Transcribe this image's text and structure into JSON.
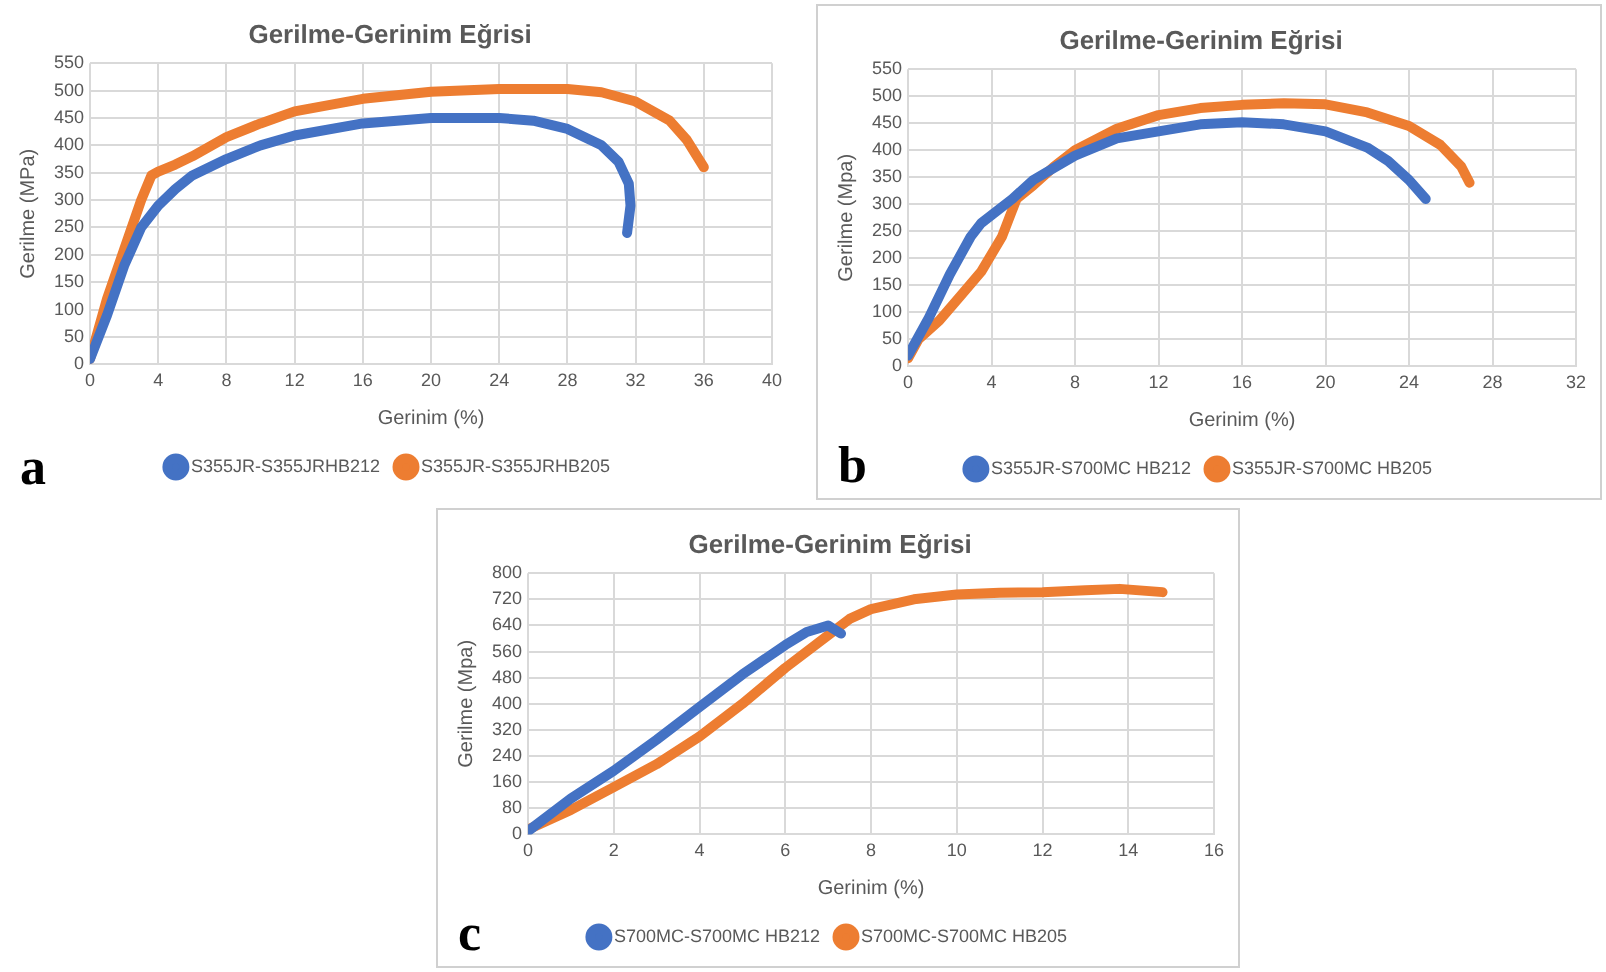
{
  "chart_data": [
    {
      "type": "line",
      "title": "Gerilme-Gerinim Eğrisi",
      "xlabel": "Gerinim (%)",
      "ylabel": "Gerilme (MPa)",
      "annotations": [
        "a"
      ],
      "xlim": [
        0,
        40
      ],
      "xticks": [
        0,
        4,
        8,
        12,
        16,
        20,
        24,
        28,
        32,
        36,
        40
      ],
      "ylim": [
        0,
        550
      ],
      "yticks": [
        0,
        50,
        100,
        150,
        200,
        250,
        300,
        350,
        400,
        450,
        500,
        550
      ],
      "grid": true,
      "legend": "bottom",
      "marker": "none",
      "series": [
        {
          "name": "S355JR-S355JRHB212",
          "color": "#4472c4",
          "x": [
            0,
            1,
            2,
            3,
            4,
            5,
            6,
            8,
            10,
            12,
            16,
            20,
            24,
            26,
            28,
            30,
            31,
            31.6,
            31.7,
            31.5
          ],
          "values": [
            10,
            90,
            180,
            250,
            290,
            320,
            345,
            375,
            400,
            418,
            440,
            450,
            450,
            445,
            430,
            400,
            370,
            330,
            290,
            240
          ]
        },
        {
          "name": "S355JR-S355JRHB205",
          "color": "#ed7d31",
          "x": [
            0,
            1,
            2,
            3,
            3.6,
            4,
            5,
            6,
            8,
            10,
            12,
            16,
            20,
            24,
            28,
            30,
            32,
            34,
            35,
            36
          ],
          "values": [
            10,
            120,
            210,
            300,
            345,
            352,
            365,
            380,
            415,
            440,
            462,
            485,
            498,
            503,
            503,
            497,
            480,
            445,
            410,
            360
          ]
        }
      ]
    },
    {
      "type": "line",
      "title": "Gerilme-Gerinim Eğrisi",
      "xlabel": "Gerinim (%)",
      "ylabel": "Gerilme (Mpa)",
      "annotations": [
        "b"
      ],
      "xlim": [
        0,
        32
      ],
      "xticks": [
        0,
        4,
        8,
        12,
        16,
        20,
        24,
        28,
        32
      ],
      "ylim": [
        0,
        550
      ],
      "yticks": [
        0,
        50,
        100,
        150,
        200,
        250,
        300,
        350,
        400,
        450,
        500,
        550
      ],
      "grid": true,
      "legend": "bottom",
      "marker": "none",
      "series": [
        {
          "name": "S355JR-S700MC HB212",
          "color": "#4472c4",
          "x": [
            0,
            1,
            2,
            3,
            3.5,
            5,
            6,
            8,
            10,
            12,
            14,
            16,
            18,
            20,
            22,
            23,
            24,
            24.8
          ],
          "values": [
            20,
            90,
            170,
            240,
            265,
            310,
            345,
            390,
            422,
            435,
            448,
            452,
            448,
            435,
            405,
            380,
            345,
            310
          ]
        },
        {
          "name": "S355JR-S700MC HB205",
          "color": "#ed7d31",
          "x": [
            0,
            0.5,
            1.5,
            2.5,
            3.5,
            4.5,
            5.2,
            6,
            7,
            8,
            10,
            12,
            14,
            16,
            18,
            20,
            22,
            24,
            25.5,
            26.5,
            26.9
          ],
          "values": [
            15,
            50,
            85,
            130,
            175,
            240,
            310,
            335,
            370,
            400,
            440,
            465,
            478,
            484,
            487,
            485,
            470,
            445,
            410,
            370,
            340
          ]
        }
      ]
    },
    {
      "type": "line",
      "title": "Gerilme-Gerinim Eğrisi",
      "xlabel": "Gerinim (%)",
      "ylabel": "Gerilme (Mpa)",
      "annotations": [
        "c"
      ],
      "xlim": [
        0,
        16
      ],
      "xticks": [
        0,
        2,
        4,
        6,
        8,
        10,
        12,
        14,
        16
      ],
      "ylim": [
        0,
        800
      ],
      "yticks": [
        0,
        80,
        160,
        240,
        320,
        400,
        480,
        560,
        640,
        720,
        800
      ],
      "grid": true,
      "legend": "bottom",
      "marker": "none",
      "series": [
        {
          "name": "S700MC-S700MC HB212",
          "color": "#4472c4",
          "x": [
            0,
            0.5,
            1,
            2,
            3,
            4,
            5,
            6,
            6.5,
            7,
            7.3
          ],
          "values": [
            10,
            60,
            110,
            195,
            290,
            390,
            490,
            580,
            620,
            640,
            615
          ]
        },
        {
          "name": "S700MC-S700MC HB205",
          "color": "#ed7d31",
          "x": [
            0,
            0.5,
            1,
            2,
            3,
            4,
            5,
            6,
            7,
            7.5,
            8,
            9,
            10,
            11,
            12,
            13,
            13.8,
            14.8
          ],
          "values": [
            15,
            45,
            75,
            145,
            215,
            300,
            400,
            510,
            610,
            660,
            690,
            720,
            735,
            740,
            742,
            748,
            752,
            742
          ]
        }
      ]
    }
  ]
}
